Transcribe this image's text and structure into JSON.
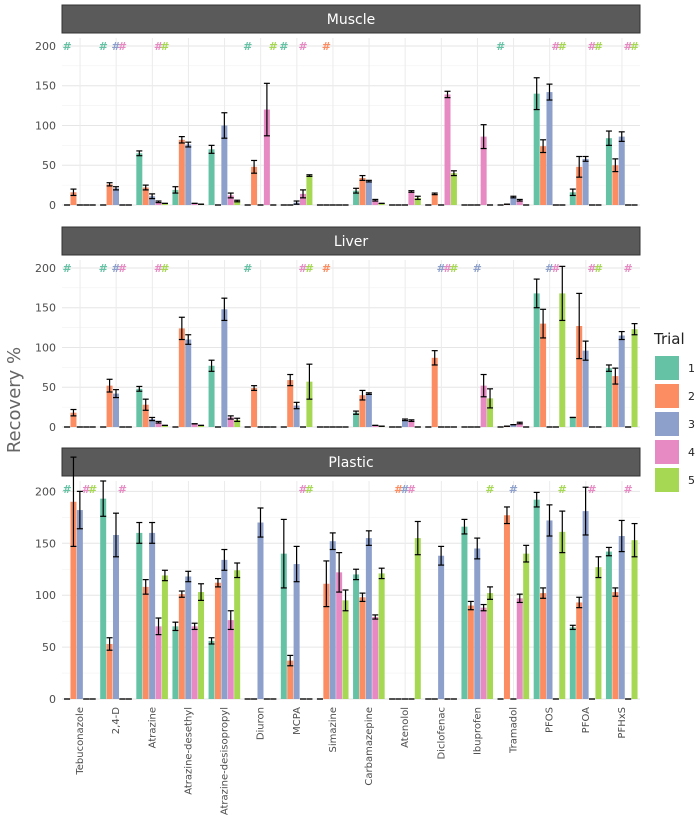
{
  "chart_data": {
    "type": "bar",
    "ylabel": "Recovery %",
    "ylim": [
      0,
      210
    ],
    "yticks": [
      0,
      50,
      100,
      150,
      200
    ],
    "categories": [
      "Tebuconazole",
      "2,4-D",
      "Atrazine",
      "Atrazine-desethyl",
      "Atrazine-desisopropyl",
      "Diuron",
      "MCPA",
      "Simazine",
      "Carbamazepine",
      "Atenolol",
      "Diclofenac",
      "Ibuprofen",
      "Tramadol",
      "PFOS",
      "PFOA",
      "PFHxS"
    ],
    "legend": {
      "title": "Trial",
      "position": "right",
      "entries": [
        {
          "label": "1",
          "color": "#66c2a5"
        },
        {
          "label": "2",
          "color": "#fc8d62"
        },
        {
          "label": "3",
          "color": "#8da0cb"
        },
        {
          "label": "4",
          "color": "#e78ac3"
        },
        {
          "label": "5",
          "color": "#a6d854"
        }
      ]
    },
    "marker_symbol": "#",
    "panels": [
      {
        "title": "Muscle",
        "values": [
          [
            0,
            16,
            0,
            0,
            0
          ],
          [
            0,
            26,
            21,
            0,
            0
          ],
          [
            65,
            22,
            11,
            4,
            2
          ],
          [
            19,
            82,
            76,
            2,
            1
          ],
          [
            70,
            0,
            100,
            12,
            5
          ],
          [
            0,
            48,
            0,
            120,
            0
          ],
          [
            0,
            0,
            3,
            14,
            37
          ],
          [
            0,
            0,
            0,
            0,
            0
          ],
          [
            18,
            34,
            30,
            6,
            2
          ],
          [
            0,
            0,
            0,
            17,
            9
          ],
          [
            0,
            14,
            0,
            139,
            40
          ],
          [
            0,
            0,
            0,
            86,
            0
          ],
          [
            0,
            1,
            10,
            6,
            0
          ],
          [
            140,
            74,
            142,
            0,
            0
          ],
          [
            16,
            48,
            58,
            0,
            0
          ],
          [
            84,
            50,
            86,
            0,
            0
          ]
        ],
        "errors": [
          [
            0,
            4,
            0,
            0,
            0
          ],
          [
            0,
            2,
            2,
            0,
            0
          ],
          [
            3,
            3,
            3,
            1,
            0
          ],
          [
            4,
            4,
            3,
            0,
            0
          ],
          [
            5,
            0,
            16,
            3,
            1
          ],
          [
            0,
            8,
            0,
            33,
            0
          ],
          [
            0,
            0,
            2,
            5,
            1
          ],
          [
            0,
            0,
            0,
            0,
            0
          ],
          [
            3,
            3,
            1,
            1,
            0
          ],
          [
            0,
            0,
            0,
            1,
            2
          ],
          [
            0,
            1,
            0,
            4,
            3
          ],
          [
            0,
            0,
            0,
            15,
            0
          ],
          [
            0,
            0,
            1,
            1,
            0
          ],
          [
            20,
            8,
            10,
            0,
            0
          ],
          [
            4,
            13,
            3,
            0,
            0
          ],
          [
            9,
            8,
            6,
            0,
            0
          ]
        ],
        "markers": [
          [
            1,
            0,
            0,
            0,
            0
          ],
          [
            1,
            0,
            1,
            1,
            0
          ],
          [
            0,
            0,
            0,
            1,
            1
          ],
          [
            0,
            0,
            0,
            0,
            0
          ],
          [
            0,
            0,
            0,
            0,
            0
          ],
          [
            1,
            0,
            0,
            0,
            1
          ],
          [
            1,
            0,
            0,
            1,
            0
          ],
          [
            0,
            1,
            0,
            0,
            0
          ],
          [
            0,
            0,
            0,
            0,
            0
          ],
          [
            0,
            0,
            0,
            0,
            0
          ],
          [
            0,
            0,
            0,
            0,
            0
          ],
          [
            0,
            0,
            0,
            0,
            0
          ],
          [
            1,
            0,
            0,
            0,
            0
          ],
          [
            0,
            0,
            0,
            1,
            1
          ],
          [
            0,
            0,
            0,
            1,
            1
          ],
          [
            0,
            0,
            0,
            1,
            1
          ]
        ]
      },
      {
        "title": "Liver",
        "values": [
          [
            0,
            18,
            0,
            0,
            0
          ],
          [
            0,
            52,
            42,
            0,
            0
          ],
          [
            48,
            28,
            10,
            6,
            2
          ],
          [
            0,
            124,
            110,
            4,
            2
          ],
          [
            77,
            0,
            148,
            12,
            9
          ],
          [
            0,
            49,
            0,
            0,
            0
          ],
          [
            0,
            59,
            27,
            0,
            57
          ],
          [
            0,
            0,
            0,
            0,
            0
          ],
          [
            18,
            40,
            42,
            2,
            1
          ],
          [
            0,
            0,
            9,
            8,
            0
          ],
          [
            0,
            87,
            0,
            0,
            0
          ],
          [
            0,
            0,
            0,
            52,
            36
          ],
          [
            0,
            1,
            3,
            5,
            0
          ],
          [
            168,
            130,
            0,
            0,
            168
          ],
          [
            12,
            127,
            96,
            0,
            0
          ],
          [
            74,
            64,
            115,
            0,
            123
          ]
        ],
        "errors": [
          [
            0,
            4,
            0,
            0,
            0
          ],
          [
            0,
            8,
            5,
            0,
            0
          ],
          [
            3,
            7,
            2,
            1,
            0
          ],
          [
            0,
            14,
            6,
            0,
            0
          ],
          [
            7,
            0,
            14,
            2,
            2
          ],
          [
            0,
            3,
            0,
            0,
            0
          ],
          [
            0,
            7,
            4,
            0,
            22
          ],
          [
            0,
            0,
            0,
            0,
            0
          ],
          [
            2,
            6,
            1,
            0,
            0
          ],
          [
            0,
            0,
            1,
            1,
            0
          ],
          [
            0,
            9,
            0,
            0,
            0
          ],
          [
            0,
            0,
            0,
            14,
            12
          ],
          [
            0,
            0,
            0,
            1,
            0
          ],
          [
            18,
            18,
            0,
            0,
            34
          ],
          [
            0,
            41,
            12,
            0,
            0
          ],
          [
            4,
            10,
            5,
            0,
            7
          ]
        ],
        "markers": [
          [
            1,
            0,
            0,
            0,
            0
          ],
          [
            1,
            0,
            1,
            1,
            0
          ],
          [
            0,
            0,
            0,
            1,
            1
          ],
          [
            0,
            0,
            0,
            0,
            0
          ],
          [
            0,
            0,
            0,
            0,
            0
          ],
          [
            1,
            0,
            0,
            0,
            0
          ],
          [
            0,
            0,
            0,
            1,
            1
          ],
          [
            0,
            1,
            0,
            0,
            0
          ],
          [
            0,
            0,
            0,
            0,
            0
          ],
          [
            0,
            0,
            0,
            0,
            0
          ],
          [
            0,
            0,
            1,
            1,
            1
          ],
          [
            0,
            0,
            1,
            0,
            0
          ],
          [
            0,
            0,
            0,
            0,
            0
          ],
          [
            0,
            0,
            1,
            1,
            0
          ],
          [
            0,
            0,
            0,
            1,
            1
          ],
          [
            0,
            0,
            0,
            1,
            0
          ]
        ]
      },
      {
        "title": "Plastic",
        "values": [
          [
            0,
            190,
            182,
            0,
            0
          ],
          [
            193,
            53,
            158,
            0,
            0
          ],
          [
            160,
            108,
            160,
            70,
            119
          ],
          [
            70,
            101,
            118,
            70,
            103
          ],
          [
            56,
            112,
            134,
            76,
            124
          ],
          [
            0,
            0,
            170,
            0,
            0
          ],
          [
            140,
            37,
            130,
            0,
            0
          ],
          [
            0,
            111,
            152,
            122,
            95
          ],
          [
            120,
            98,
            155,
            79,
            121
          ],
          [
            0,
            0,
            0,
            0,
            155
          ],
          [
            0,
            0,
            138,
            0,
            0
          ],
          [
            166,
            90,
            145,
            88,
            102
          ],
          [
            0,
            177,
            0,
            97,
            140
          ],
          [
            192,
            102,
            172,
            0,
            161
          ],
          [
            69,
            93,
            181,
            0,
            127
          ],
          [
            142,
            103,
            157,
            0,
            153
          ]
        ],
        "errors": [
          [
            0,
            43,
            18,
            0,
            0
          ],
          [
            17,
            6,
            21,
            0,
            0
          ],
          [
            10,
            7,
            10,
            8,
            5
          ],
          [
            4,
            3,
            5,
            3,
            8
          ],
          [
            3,
            4,
            10,
            9,
            7
          ],
          [
            0,
            0,
            14,
            0,
            0
          ],
          [
            33,
            5,
            17,
            0,
            0
          ],
          [
            0,
            22,
            8,
            19,
            10
          ],
          [
            5,
            4,
            7,
            2,
            5
          ],
          [
            0,
            0,
            0,
            0,
            16
          ],
          [
            0,
            0,
            9,
            0,
            0
          ],
          [
            7,
            4,
            10,
            3,
            6
          ],
          [
            0,
            8,
            0,
            4,
            8
          ],
          [
            7,
            5,
            15,
            0,
            20
          ],
          [
            2,
            5,
            23,
            0,
            10
          ],
          [
            4,
            4,
            15,
            0,
            16
          ]
        ],
        "markers": [
          [
            1,
            0,
            0,
            1,
            1
          ],
          [
            0,
            0,
            0,
            1,
            0
          ],
          [
            0,
            0,
            0,
            0,
            0
          ],
          [
            0,
            0,
            0,
            0,
            0
          ],
          [
            0,
            0,
            0,
            0,
            0
          ],
          [
            0,
            0,
            0,
            0,
            0
          ],
          [
            0,
            0,
            0,
            1,
            1
          ],
          [
            0,
            0,
            0,
            0,
            0
          ],
          [
            0,
            0,
            0,
            0,
            0
          ],
          [
            0,
            1,
            1,
            1,
            0
          ],
          [
            0,
            0,
            0,
            0,
            0
          ],
          [
            0,
            0,
            0,
            0,
            1
          ],
          [
            0,
            0,
            1,
            0,
            0
          ],
          [
            0,
            0,
            0,
            0,
            1
          ],
          [
            0,
            0,
            0,
            1,
            0
          ],
          [
            0,
            0,
            0,
            1,
            0
          ]
        ]
      }
    ]
  }
}
